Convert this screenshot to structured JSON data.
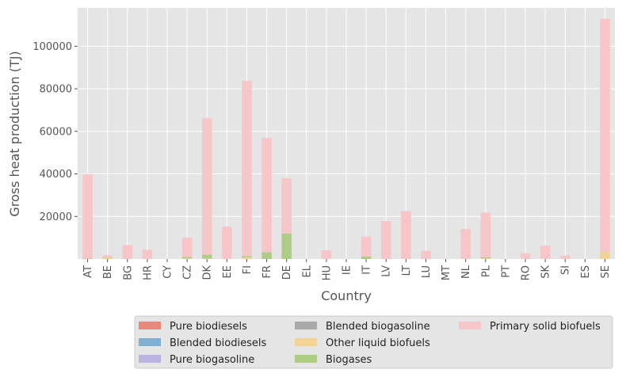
{
  "chart_data": {
    "type": "bar",
    "stacked": true,
    "title": "",
    "xlabel": "Country",
    "ylabel": "Gross heat production (TJ)",
    "ylim": [
      0,
      118000
    ],
    "yticks": [
      20000,
      40000,
      60000,
      80000,
      100000
    ],
    "grid": true,
    "legend_position": "bottom",
    "categories": [
      "AT",
      "BE",
      "BG",
      "HR",
      "CY",
      "CZ",
      "DK",
      "EE",
      "FI",
      "FR",
      "DE",
      "EL",
      "HU",
      "IE",
      "IT",
      "LV",
      "LT",
      "LU",
      "MT",
      "NL",
      "PL",
      "PT",
      "RO",
      "SK",
      "SI",
      "ES",
      "SE"
    ],
    "series": [
      {
        "name": "Pure biodiesels",
        "color": "#E8887A",
        "values": [
          0,
          0,
          0,
          0,
          0,
          0,
          0,
          0,
          0,
          0,
          0,
          0,
          0,
          0,
          0,
          0,
          0,
          0,
          0,
          0,
          0,
          0,
          0,
          0,
          0,
          0,
          0
        ]
      },
      {
        "name": "Blended biodiesels",
        "color": "#7FB0D2",
        "values": [
          0,
          0,
          0,
          0,
          0,
          0,
          0,
          0,
          0,
          0,
          0,
          0,
          0,
          0,
          0,
          0,
          0,
          0,
          0,
          0,
          0,
          0,
          0,
          0,
          0,
          0,
          0
        ]
      },
      {
        "name": "Pure biogasoline",
        "color": "#BCB4E0",
        "values": [
          0,
          0,
          0,
          0,
          0,
          0,
          0,
          0,
          0,
          0,
          0,
          0,
          0,
          0,
          0,
          0,
          0,
          0,
          0,
          0,
          0,
          0,
          0,
          0,
          0,
          0,
          0
        ]
      },
      {
        "name": "Blended biogasoline",
        "color": "#A9A9A9",
        "values": [
          0,
          0,
          0,
          0,
          0,
          0,
          0,
          0,
          0,
          0,
          0,
          0,
          0,
          0,
          0,
          0,
          0,
          0,
          0,
          0,
          0,
          0,
          0,
          0,
          0,
          0,
          0
        ]
      },
      {
        "name": "Other liquid biofuels",
        "color": "#F3D391",
        "values": [
          0,
          600,
          0,
          0,
          0,
          300,
          200,
          0,
          800,
          0,
          0,
          0,
          0,
          0,
          0,
          0,
          0,
          0,
          0,
          0,
          300,
          0,
          0,
          0,
          0,
          0,
          3400
        ]
      },
      {
        "name": "Biogases",
        "color": "#AECD84",
        "values": [
          200,
          200,
          0,
          0,
          0,
          600,
          1800,
          0,
          600,
          3200,
          12000,
          0,
          0,
          0,
          1200,
          0,
          0,
          0,
          0,
          0,
          500,
          0,
          0,
          0,
          0,
          0,
          0
        ]
      },
      {
        "name": "Primary solid biofuels",
        "color": "#F6C6C9",
        "values": [
          39700,
          1000,
          6500,
          4300,
          0,
          9200,
          64200,
          15200,
          82300,
          53700,
          26000,
          0,
          4100,
          0,
          9300,
          17800,
          22500,
          3900,
          0,
          14100,
          21000,
          0,
          2700,
          6300,
          1600,
          0,
          109500
        ]
      }
    ]
  }
}
